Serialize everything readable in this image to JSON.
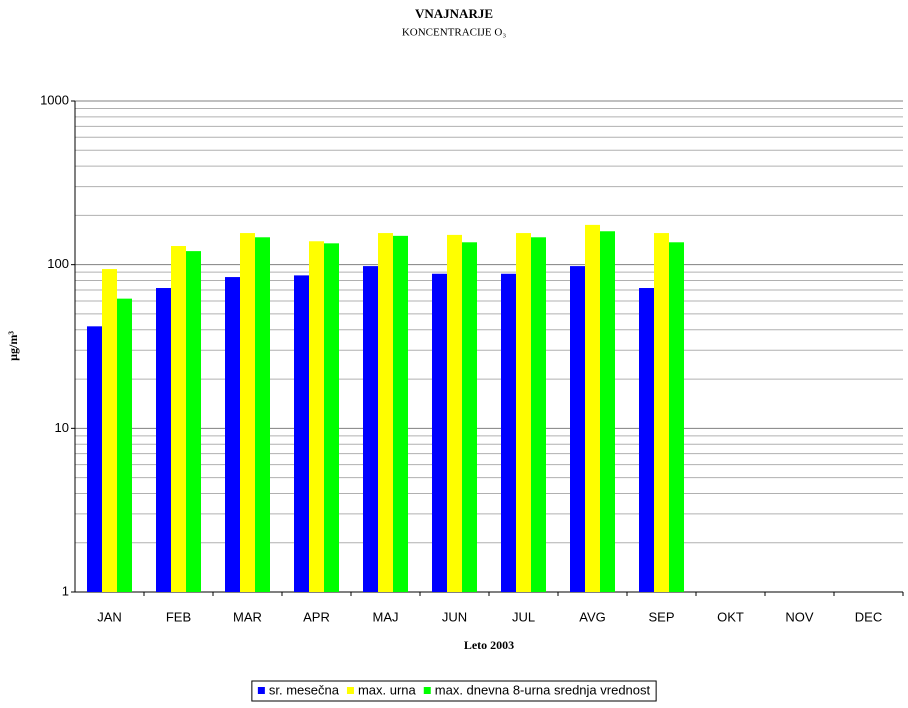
{
  "chart_data": {
    "type": "bar",
    "title": "VNAJNARJE",
    "subtitle": "KONCENTRACIJE O₃",
    "y_label": "µg/m³",
    "x_label": "Leto 2003",
    "categories": [
      "JAN",
      "FEB",
      "MAR",
      "APR",
      "MAJ",
      "JUN",
      "JUL",
      "AVG",
      "SEP",
      "OKT",
      "NOV",
      "DEC"
    ],
    "series": [
      {
        "name": "sr. mesečna",
        "color": "#0000ff",
        "values": [
          42,
          72,
          84,
          86,
          98,
          88,
          88,
          98,
          72,
          null,
          null,
          null
        ]
      },
      {
        "name": "max. urna",
        "color": "#ffff00",
        "values": [
          94,
          130,
          156,
          139,
          156,
          152,
          156,
          175,
          156,
          null,
          null,
          null
        ]
      },
      {
        "name": "max. dnevna 8-urna srednja vrednost",
        "color": "#00ff00",
        "values": [
          62,
          121,
          147,
          135,
          150,
          137,
          147,
          160,
          137,
          null,
          null,
          null
        ]
      }
    ],
    "ylim": [
      1,
      1000
    ],
    "yticks": [
      1,
      10,
      100,
      1000
    ],
    "log_scale": true,
    "grid": true,
    "minor_grid": true,
    "legend": "bottom"
  }
}
